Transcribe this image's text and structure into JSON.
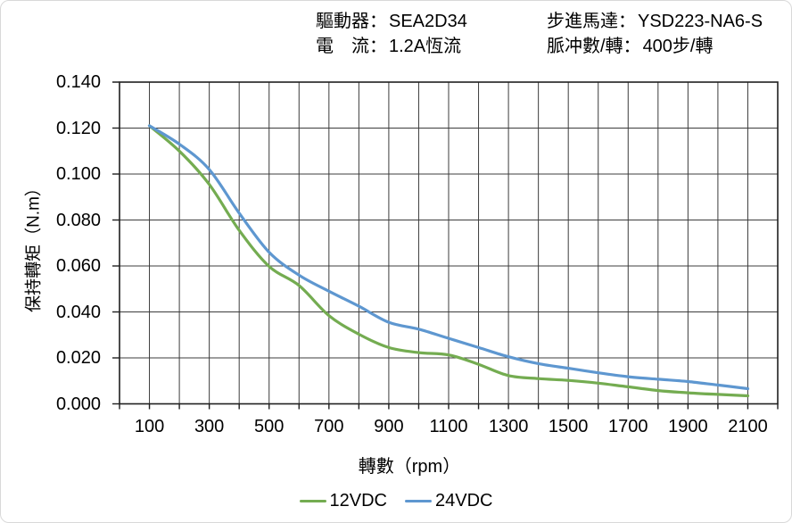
{
  "header": {
    "items": [
      {
        "label": "驅動器：",
        "value": "SEA2D34"
      },
      {
        "label": "電　流：",
        "value": "1.2A恆流"
      },
      {
        "label": "步進馬達：",
        "value": "YSD223-NA6-S"
      },
      {
        "label": "脈冲數/轉：",
        "value": "400步/轉"
      }
    ]
  },
  "chart_data": {
    "type": "line",
    "title": "",
    "xlabel": "轉數（rpm）",
    "ylabel": "保持轉矩（N.m）",
    "x": [
      100,
      200,
      300,
      400,
      500,
      600,
      700,
      800,
      900,
      1000,
      1100,
      1200,
      1300,
      1400,
      1500,
      1600,
      1700,
      1800,
      1900,
      2000,
      2100
    ],
    "series": [
      {
        "name": "12VDC",
        "color": "#74AC51",
        "values": [
          0.121,
          0.11,
          0.0955,
          0.0755,
          0.0598,
          0.0515,
          0.0384,
          0.0303,
          0.0245,
          0.0223,
          0.0213,
          0.0172,
          0.0123,
          0.011,
          0.0102,
          0.009,
          0.0074,
          0.0058,
          0.0048,
          0.0041,
          0.0035
        ]
      },
      {
        "name": "24VDC",
        "color": "#5E97D0",
        "values": [
          0.121,
          0.113,
          0.102,
          0.083,
          0.066,
          0.056,
          0.049,
          0.0425,
          0.0355,
          0.0325,
          0.0285,
          0.0245,
          0.0205,
          0.0175,
          0.0155,
          0.0135,
          0.0118,
          0.0107,
          0.0097,
          0.0082,
          0.0066
        ]
      }
    ],
    "xlim": [
      0,
      2200
    ],
    "ylim": [
      0,
      0.14
    ],
    "x_tick_step": 100,
    "x_label_ticks": [
      100,
      300,
      500,
      700,
      900,
      1100,
      1300,
      1500,
      1700,
      1900,
      2100
    ],
    "y_ticks": [
      0.0,
      0.02,
      0.04,
      0.06,
      0.08,
      0.1,
      0.12,
      0.14
    ],
    "y_tick_decimals": 3,
    "grid": true,
    "legend_position": "bottom",
    "grid_color": "#3c3c3c",
    "border_color": "#1f1f1f"
  }
}
